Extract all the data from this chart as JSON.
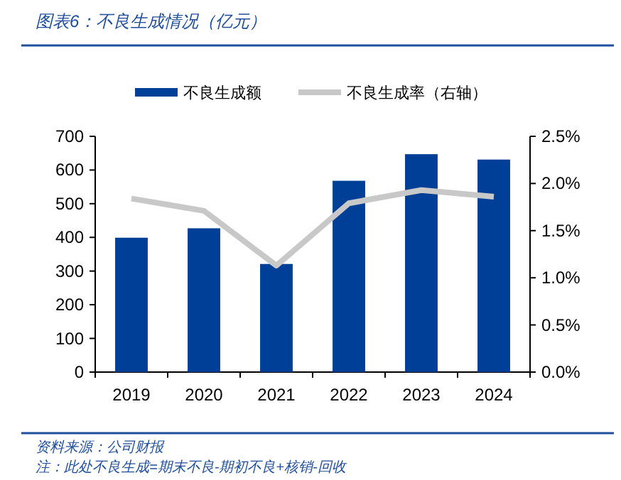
{
  "chart_data": {
    "type": "bar",
    "title": "图表6：不良生成情况（亿元）",
    "categories": [
      "2019",
      "2020",
      "2021",
      "2022",
      "2023",
      "2024"
    ],
    "series": [
      {
        "name": "不良生成额",
        "color": "#003f97",
        "values": [
          399,
          427,
          321,
          568,
          647,
          631
        ]
      },
      {
        "name": "不良生成率（右轴）",
        "type": "line",
        "axis": "y2",
        "color": "#c8c8c8",
        "marker": "none",
        "values": [
          1.84,
          1.71,
          1.13,
          1.79,
          1.93,
          1.86
        ]
      }
    ],
    "ylim": [
      0,
      700
    ],
    "yticks": [
      0,
      100,
      200,
      300,
      400,
      500,
      600,
      700
    ],
    "y2lim": [
      0,
      2.5
    ],
    "y2ticks": [
      {
        "value": 0,
        "label": "0.0%"
      },
      {
        "value": 0.5,
        "label": "0.5%"
      },
      {
        "value": 1,
        "label": "1.0%"
      },
      {
        "value": 1.5,
        "label": "1.5%"
      },
      {
        "value": 2,
        "label": "2.0%"
      },
      {
        "value": 2.5,
        "label": "2.5%"
      }
    ],
    "grid": false,
    "legend": "top",
    "annotations": [
      "资料来源：公司财报",
      "注：此处不良生成=期末不良-期初不良+核销-回收"
    ]
  }
}
